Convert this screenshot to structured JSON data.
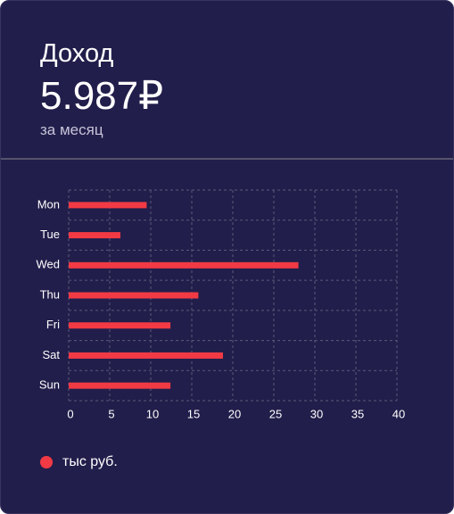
{
  "card": {
    "title": "Доход",
    "amount": "5.987₽",
    "period": "за месяц"
  },
  "chart_data": {
    "type": "bar",
    "orientation": "horizontal",
    "categories": [
      "Mon",
      "Tue",
      "Wed",
      "Thu",
      "Fri",
      "Sat",
      "Sun"
    ],
    "series": [
      {
        "name": "тыс руб.",
        "values": [
          9.5,
          6.3,
          28,
          15.8,
          12.4,
          18.8,
          12.4
        ]
      }
    ],
    "x_ticks": [
      0,
      5,
      10,
      15,
      20,
      25,
      30,
      35,
      40
    ],
    "xlim": [
      0,
      40
    ],
    "grid": true,
    "legend_position": "bottom-left",
    "bar_color": "#f23a44",
    "grid_color": "#5b597a"
  },
  "legend": {
    "label": "тыс руб."
  }
}
